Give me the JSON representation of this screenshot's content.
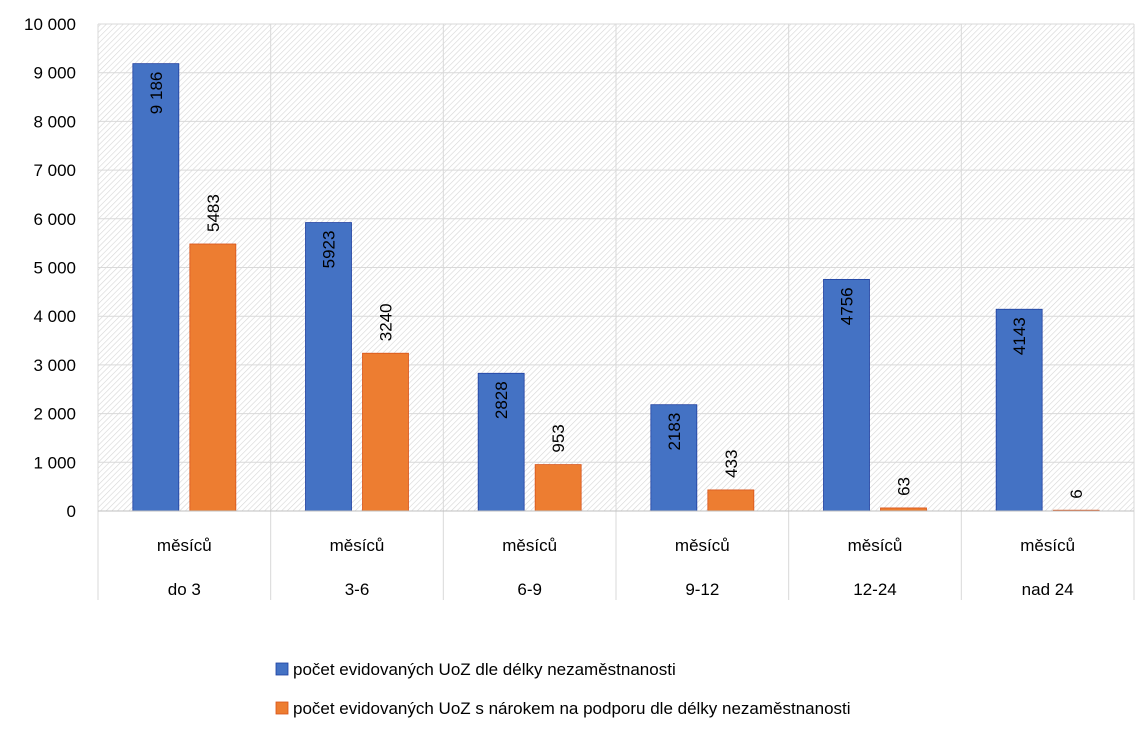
{
  "chart_data": {
    "type": "bar",
    "title": "",
    "xlabel": "",
    "ylabel": "",
    "ylim": [
      0,
      10000
    ],
    "yticks": [
      0,
      1000,
      2000,
      3000,
      4000,
      5000,
      6000,
      7000,
      8000,
      9000,
      10000
    ],
    "ytick_labels": [
      "0",
      "1 000",
      "2 000",
      "3 000",
      "4 000",
      "5 000",
      "6 000",
      "7 000",
      "8 000",
      "9 000",
      "10 000"
    ],
    "categories": [
      "do 3 měsíců",
      "3-6 měsíců",
      "6-9 měsíců",
      "9-12 měsíců",
      "12-24 měsíců",
      "nad 24 měsíců"
    ],
    "category_labels": [
      {
        "line1": "měsíců",
        "line2": "do 3"
      },
      {
        "line1": "měsíců",
        "line2": "3-6"
      },
      {
        "line1": "měsíců",
        "line2": "6-9"
      },
      {
        "line1": "měsíců",
        "line2": "9-12"
      },
      {
        "line1": "měsíců",
        "line2": "12-24"
      },
      {
        "line1": "měsíců",
        "line2": "nad 24"
      }
    ],
    "series": [
      {
        "name": "počet evidovaných UoZ dle délky nezaměstnanosti",
        "color": "#4472c4",
        "values": [
          9186,
          5923,
          2828,
          2183,
          4756,
          4143
        ],
        "labels": [
          "9 186",
          "5923",
          "2828",
          "2183",
          "4756",
          "4143"
        ],
        "label_position": "inside"
      },
      {
        "name": "počet evidovaných UoZ s nárokem na podporu dle délky nezaměstnanosti",
        "color": "#ed7d31",
        "values": [
          5483,
          3240,
          953,
          433,
          63,
          6
        ],
        "labels": [
          "5483",
          "3240",
          "953",
          "433",
          "63",
          "6"
        ],
        "label_position": "above"
      }
    ],
    "grid": true,
    "legend_position": "bottom"
  }
}
